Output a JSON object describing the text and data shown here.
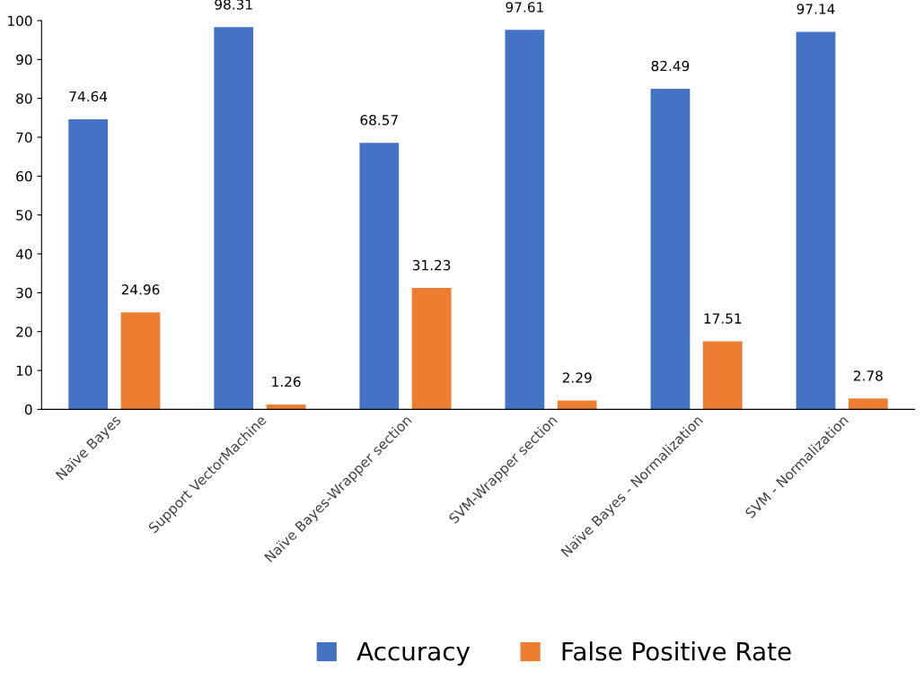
{
  "chart_data": {
    "type": "bar",
    "categories": [
      "Naïve Bayes",
      "Support VectorMachine",
      "Naïve Bayes-Wrapper section",
      "SVM-Wrapper section",
      "Naïve Bayes - Normalization",
      "SVM - Normalization"
    ],
    "series": [
      {
        "name": "Accuracy",
        "color": "#4472c4",
        "values": [
          74.64,
          98.31,
          68.57,
          97.61,
          82.49,
          97.14
        ]
      },
      {
        "name": "False Positive Rate",
        "color": "#ed7d31",
        "values": [
          24.96,
          1.26,
          31.23,
          2.29,
          17.51,
          2.78
        ]
      }
    ],
    "ylim": [
      0,
      100
    ],
    "yticks": [
      0,
      10,
      20,
      30,
      40,
      50,
      60,
      70,
      80,
      90,
      100
    ],
    "data_labels": true,
    "grid": false,
    "legend": "bottom"
  }
}
